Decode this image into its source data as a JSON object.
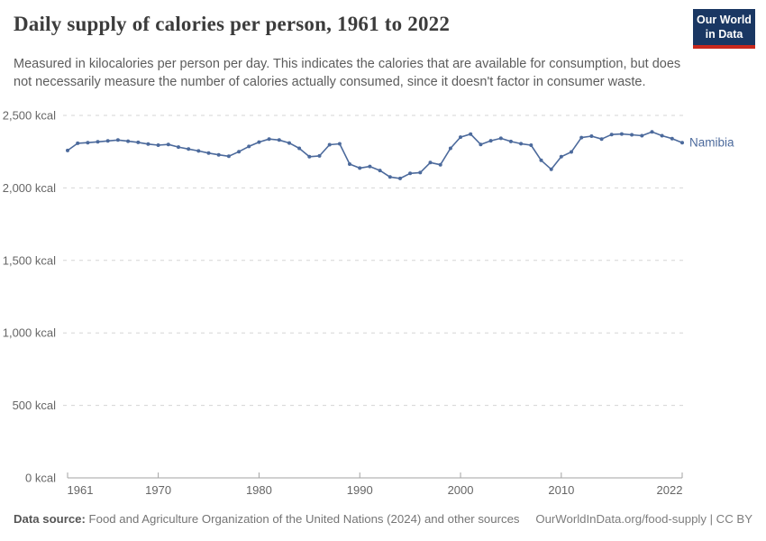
{
  "header": {
    "title": "Daily supply of calories per person, 1961 to 2022",
    "subtitle": "Measured in kilocalories per person per day. This indicates the calories that are available for consumption, but does not necessarily measure the number of calories actually consumed, since it doesn't factor in consumer waste.",
    "logo": {
      "line1": "Our World",
      "line2": "in Data"
    }
  },
  "chart_data": {
    "type": "line",
    "title": "Daily supply of calories per person, 1961 to 2022",
    "unit": "kcal",
    "xlabel": "",
    "ylabel": "",
    "xlim": [
      1961,
      2022
    ],
    "ylim": [
      0,
      2500
    ],
    "grid": "horizontal-dashed",
    "legend_position": "end-of-line-label",
    "x": [
      1961,
      1962,
      1963,
      1964,
      1965,
      1966,
      1967,
      1968,
      1969,
      1970,
      1971,
      1972,
      1973,
      1974,
      1975,
      1976,
      1977,
      1978,
      1979,
      1980,
      1981,
      1982,
      1983,
      1984,
      1985,
      1986,
      1987,
      1988,
      1989,
      1990,
      1991,
      1992,
      1993,
      1994,
      1995,
      1996,
      1997,
      1998,
      1999,
      2000,
      2001,
      2002,
      2003,
      2004,
      2005,
      2006,
      2007,
      2008,
      2009,
      2010,
      2011,
      2012,
      2013,
      2014,
      2015,
      2016,
      2017,
      2018,
      2019,
      2020,
      2021,
      2022
    ],
    "series": [
      {
        "name": "Namibia",
        "color": "#4C6A9C",
        "values": [
          2258,
          2308,
          2312,
          2318,
          2324,
          2330,
          2322,
          2314,
          2302,
          2295,
          2300,
          2282,
          2268,
          2255,
          2240,
          2228,
          2218,
          2250,
          2286,
          2316,
          2337,
          2330,
          2310,
          2273,
          2215,
          2221,
          2298,
          2304,
          2164,
          2137,
          2148,
          2120,
          2075,
          2065,
          2100,
          2106,
          2175,
          2160,
          2273,
          2350,
          2371,
          2300,
          2325,
          2342,
          2320,
          2305,
          2295,
          2190,
          2128,
          2215,
          2248,
          2347,
          2357,
          2337,
          2368,
          2372,
          2366,
          2360,
          2386,
          2360,
          2340,
          2312
        ]
      }
    ],
    "yticks": [
      {
        "value": 0,
        "label": "0 kcal"
      },
      {
        "value": 500,
        "label": "500 kcal"
      },
      {
        "value": 1000,
        "label": "1,000 kcal"
      },
      {
        "value": 1500,
        "label": "1,500 kcal"
      },
      {
        "value": 2000,
        "label": "2,000 kcal"
      },
      {
        "value": 2500,
        "label": "2,500 kcal"
      }
    ],
    "xticks": [
      {
        "value": 1961,
        "label": "1961"
      },
      {
        "value": 1970,
        "label": "1970"
      },
      {
        "value": 1980,
        "label": "1980"
      },
      {
        "value": 1990,
        "label": "1990"
      },
      {
        "value": 2000,
        "label": "2000"
      },
      {
        "value": 2010,
        "label": "2010"
      },
      {
        "value": 2022,
        "label": "2022"
      }
    ]
  },
  "footer": {
    "datasource_label": "Data source:",
    "datasource_text": " Food and Agriculture Organization of the United Nations (2024) and other sources",
    "attribution": "OurWorldInData.org/food-supply | CC BY"
  },
  "colors": {
    "line": "#4C6A9C",
    "grid": "#d5d5d5",
    "axis": "#a3a3a3",
    "tick_text": "#666666",
    "title_text": "#3c3c3c",
    "subtitle_text": "#5c5c5c",
    "logo_bg": "#1a3763",
    "logo_red": "#c9281c"
  }
}
